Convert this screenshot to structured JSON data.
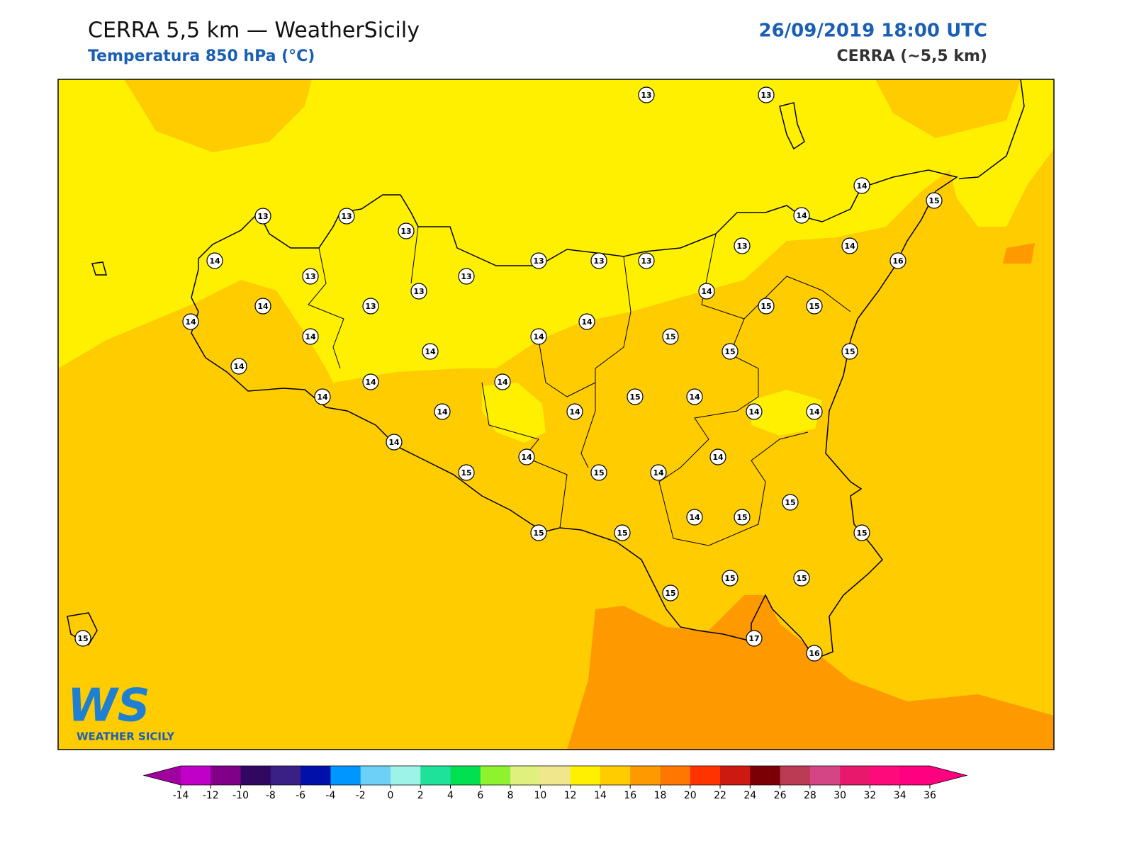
{
  "header": {
    "title": "CERRA 5,5 km — WeatherSicily",
    "subtitle": "Temperatura 850 hPa (°C)",
    "datetime": "26/09/2019 18:00 UTC",
    "model": "CERRA (~5,5 km)"
  },
  "stations": [
    13,
    13,
    13,
    13,
    13,
    14,
    15,
    14,
    14,
    13,
    13,
    13,
    13,
    14,
    16,
    13,
    13,
    13,
    14,
    14,
    13,
    15,
    15,
    14,
    14,
    14,
    14,
    15,
    14,
    15,
    15,
    14,
    14,
    14,
    14,
    15,
    14,
    14,
    14,
    14,
    14,
    14,
    14,
    14,
    15,
    15,
    14,
    15,
    14,
    15,
    15,
    15,
    15,
    15,
    15,
    15,
    15,
    17,
    16
  ],
  "logo": {
    "mark": "WS",
    "name": "WEATHER SICILY"
  },
  "colorbar": {
    "ticks": [
      -14,
      -12,
      -10,
      -8,
      -6,
      -4,
      -2,
      0,
      2,
      4,
      6,
      8,
      10,
      12,
      14,
      16,
      18,
      20,
      22,
      24,
      26,
      28,
      30,
      32,
      34,
      36
    ],
    "colors": [
      "#c000c8",
      "#800088",
      "#300860",
      "#3a1f85",
      "#0010a8",
      "#0096ff",
      "#6dd0f6",
      "#9ef3e8",
      "#1ee29a",
      "#00e050",
      "#8ef22e",
      "#dff07c",
      "#f0e68c",
      "#fff000",
      "#ffcc00",
      "#ff9900",
      "#ff7700",
      "#ff3300",
      "#cc1a10",
      "#7a0005",
      "#bb3b54",
      "#d34585",
      "#e8186c",
      "#ff0a7a",
      "#ff0080"
    ],
    "extend_colors": [
      "#a000a0",
      "#ff0080"
    ]
  }
}
